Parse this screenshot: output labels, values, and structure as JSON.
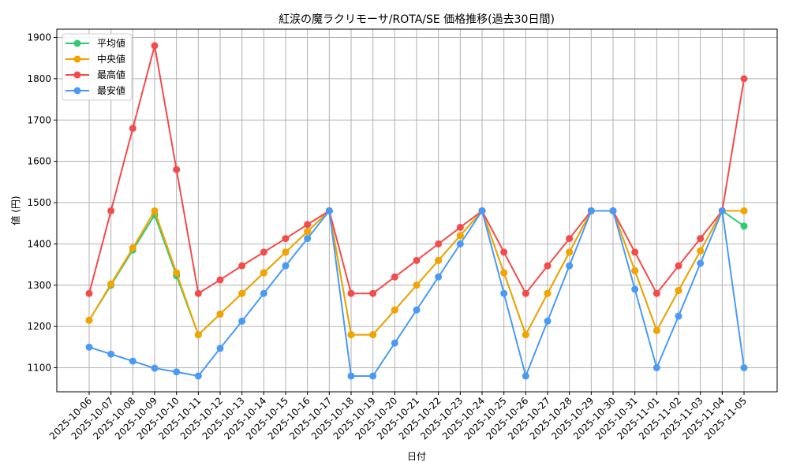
{
  "chart_data": {
    "type": "line",
    "title": "紅涙の魔ラクリモーサ/ROTA/SE 価格推移(過去30日間)",
    "xlabel": "日付",
    "ylabel": "値 (円)",
    "ylim": [
      1040,
      1920
    ],
    "yticks": [
      1100,
      1200,
      1300,
      1400,
      1500,
      1600,
      1700,
      1800,
      1900
    ],
    "grid": true,
    "legend_position": "upper left",
    "categories": [
      "2025-10-06",
      "2025-10-07",
      "2025-10-08",
      "2025-10-09",
      "2025-10-10",
      "2025-10-11",
      "2025-10-12",
      "2025-10-13",
      "2025-10-14",
      "2025-10-15",
      "2025-10-16",
      "2025-10-17",
      "2025-10-18",
      "2025-10-19",
      "2025-10-20",
      "2025-10-21",
      "2025-10-22",
      "2025-10-23",
      "2025-10-24",
      "2025-10-25",
      "2025-10-26",
      "2025-10-27",
      "2025-10-28",
      "2025-10-29",
      "2025-10-30",
      "2025-10-31",
      "2025-11-01",
      "2025-11-02",
      "2025-11-03",
      "2025-11-04",
      "2025-11-05"
    ],
    "series": [
      {
        "name": "平均値",
        "color": "#2ecc71",
        "values": [
          1215,
          1300,
          1385,
          1470,
          1323,
          1180,
          1230,
          1280,
          1330,
          1380,
          1430,
          1480,
          1180,
          1180,
          1240,
          1300,
          1360,
          1420,
          1480,
          1330,
          1180,
          1280,
          1380,
          1480,
          1480,
          1335,
          1190,
          1287,
          1383,
          1480,
          1443
        ]
      },
      {
        "name": "中央値",
        "color": "#f5a300",
        "values": [
          1215,
          1303,
          1390,
          1480,
          1330,
          1180,
          1230,
          1280,
          1330,
          1380,
          1430,
          1480,
          1180,
          1180,
          1240,
          1300,
          1360,
          1420,
          1480,
          1330,
          1180,
          1280,
          1380,
          1480,
          1480,
          1335,
          1190,
          1287,
          1383,
          1480,
          1480
        ]
      },
      {
        "name": "最高値",
        "color": "#f44b4b",
        "values": [
          1280,
          1480,
          1680,
          1880,
          1580,
          1280,
          1313,
          1347,
          1380,
          1413,
          1447,
          1480,
          1280,
          1280,
          1320,
          1360,
          1400,
          1440,
          1480,
          1380,
          1280,
          1347,
          1413,
          1480,
          1480,
          1380,
          1280,
          1347,
          1413,
          1480,
          1800
        ]
      },
      {
        "name": "最安値",
        "color": "#4a9af5",
        "values": [
          1150,
          1133,
          1116,
          1099,
          1090,
          1080,
          1147,
          1213,
          1280,
          1347,
          1413,
          1480,
          1080,
          1080,
          1160,
          1240,
          1320,
          1400,
          1480,
          1280,
          1080,
          1213,
          1347,
          1480,
          1480,
          1290,
          1100,
          1225,
          1353,
          1480,
          1100
        ]
      }
    ]
  }
}
